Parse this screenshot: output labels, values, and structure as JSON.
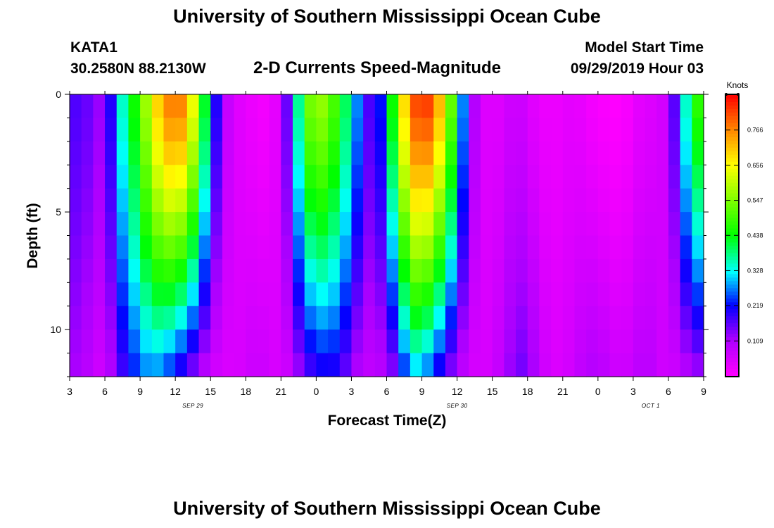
{
  "header": {
    "title": "University of Southern Mississippi Ocean Cube",
    "station_id": "KATA1",
    "station_coords": "30.2580N 88.2130W",
    "subtitle": "2-D Currents Speed-Magnitude",
    "model_start_label": "Model Start Time",
    "model_start_value": "09/29/2019 Hour 03"
  },
  "footer": {
    "title": "University of Southern Mississippi Ocean Cube"
  },
  "chart_data": {
    "type": "heatmap",
    "xlabel": "Forecast Time(Z)",
    "ylabel": "Depth (ft)",
    "x_tick_labels": [
      "3",
      "6",
      "9",
      "12",
      "15",
      "18",
      "21",
      "0",
      "3",
      "6",
      "9",
      "12",
      "15",
      "18",
      "21",
      "0",
      "3",
      "6",
      "9"
    ],
    "x_hours": [
      0,
      3,
      6,
      9,
      12,
      15,
      18,
      21,
      24,
      27,
      30,
      33,
      36,
      39,
      42,
      45,
      48,
      51,
      54
    ],
    "xlim_hours": [
      0,
      54
    ],
    "date_labels": [
      {
        "text": "SEP 29",
        "hour": 10.5
      },
      {
        "text": "SEP 30",
        "hour": 33
      },
      {
        "text": "OCT 1",
        "hour": 49.5
      }
    ],
    "y_tick_labels": [
      "0",
      "5",
      "10"
    ],
    "y_ticks": [
      0,
      5,
      10
    ],
    "ylim": [
      0,
      12
    ],
    "colorbar": {
      "title": "Knots",
      "tick_labels": [
        "0.109",
        "0.219",
        "0.328",
        "0.438",
        "0.547",
        "0.656",
        "0.766"
      ],
      "ticks": [
        0.109,
        0.219,
        0.328,
        0.438,
        0.547,
        0.656,
        0.766
      ],
      "range": [
        0,
        0.875
      ]
    },
    "columns": 54,
    "rows": 12,
    "column_profiles": [
      [
        0,
        0.18,
        0.12
      ],
      [
        1,
        0.16,
        0.1
      ],
      [
        2,
        0.15,
        0.08
      ],
      [
        3,
        0.1,
        0.05
      ],
      [
        4,
        0.3,
        0.15
      ],
      [
        6,
        0.5,
        0.25
      ],
      [
        7,
        0.65,
        0.28
      ],
      [
        8,
        0.75,
        0.25
      ],
      [
        9,
        0.8,
        0.2
      ],
      [
        10,
        0.75,
        0.15
      ],
      [
        11,
        0.55,
        0.1
      ],
      [
        12,
        0.3,
        0.06
      ],
      [
        13,
        0.1,
        0.05
      ],
      [
        14,
        0.05,
        0.05
      ],
      [
        15,
        0.03,
        0.06
      ],
      [
        16,
        0.02,
        0.08
      ],
      [
        17,
        0.01,
        0.06
      ],
      [
        18,
        0.06,
        0.05
      ],
      [
        19,
        0.25,
        0.08
      ],
      [
        20,
        0.5,
        0.15
      ],
      [
        21,
        0.58,
        0.18
      ],
      [
        22,
        0.55,
        0.2
      ],
      [
        23,
        0.45,
        0.18
      ],
      [
        24,
        0.35,
        0.12
      ],
      [
        25,
        0.2,
        0.08
      ],
      [
        26,
        0.15,
        0.08
      ],
      [
        27,
        0.3,
        0.1
      ],
      [
        28,
        0.6,
        0.15
      ],
      [
        29,
        0.78,
        0.3
      ],
      [
        30,
        0.86,
        0.28
      ],
      [
        31,
        0.8,
        0.22
      ],
      [
        32,
        0.65,
        0.15
      ],
      [
        33,
        0.4,
        0.1
      ],
      [
        34,
        0.15,
        0.06
      ],
      [
        35,
        0.05,
        0.05
      ],
      [
        36,
        0.04,
        0.06
      ],
      [
        37,
        0.05,
        0.1
      ],
      [
        38,
        0.08,
        0.15
      ],
      [
        39,
        0.05,
        0.15
      ],
      [
        40,
        0.03,
        0.08
      ],
      [
        41,
        0.02,
        0.05
      ],
      [
        42,
        0.03,
        0.05
      ],
      [
        43,
        0.04,
        0.07
      ],
      [
        44,
        0.02,
        0.1
      ],
      [
        45,
        0.01,
        0.1
      ],
      [
        46,
        0.0,
        0.08
      ],
      [
        47,
        0.0,
        0.06
      ],
      [
        48,
        0.02,
        0.08
      ],
      [
        49,
        0.05,
        0.1
      ],
      [
        50,
        0.04,
        0.08
      ],
      [
        51,
        0.08,
        0.05
      ],
      [
        52,
        0.25,
        0.08
      ],
      [
        53,
        0.45,
        0.1
      ],
      [
        54,
        0.5,
        0.12
      ]
    ],
    "profile_fields": [
      "hour",
      "surface_speed",
      "bottom_speed"
    ]
  }
}
